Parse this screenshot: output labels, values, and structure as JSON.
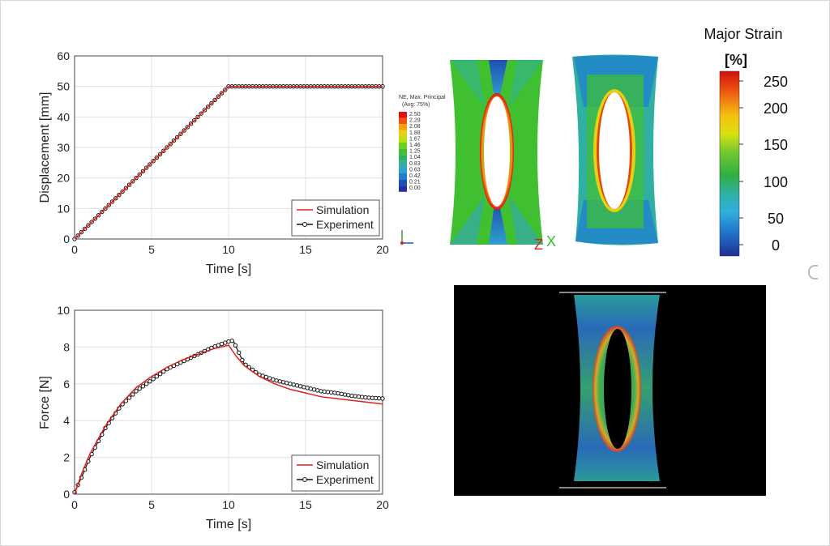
{
  "chart_data": [
    {
      "type": "line",
      "xlabel": "Time [s]",
      "ylabel": "Displacement [mm]",
      "xlim": [
        0,
        20
      ],
      "ylim": [
        0,
        60
      ],
      "xticks": [
        "0",
        "5",
        "10",
        "15",
        "20"
      ],
      "yticks": [
        "0",
        "10",
        "20",
        "30",
        "40",
        "50",
        "60"
      ],
      "grid": true,
      "legend": "bottom-right",
      "series": [
        {
          "name": "Simulation",
          "color": "#e02020",
          "marker": "none",
          "x": [
            0,
            10,
            20
          ],
          "y": [
            0,
            50,
            50
          ]
        },
        {
          "name": "Experiment",
          "color": "#111111",
          "marker": "circle",
          "x": [
            0,
            10,
            20
          ],
          "y": [
            0,
            50,
            50
          ]
        }
      ]
    },
    {
      "type": "line",
      "xlabel": "Time [s]",
      "ylabel": "Force [N]",
      "xlim": [
        0,
        20
      ],
      "ylim": [
        0,
        10
      ],
      "xticks": [
        "0",
        "5",
        "10",
        "15",
        "20"
      ],
      "yticks": [
        "0",
        "2",
        "4",
        "6",
        "8",
        "10"
      ],
      "grid": true,
      "legend": "bottom-right",
      "series": [
        {
          "name": "Simulation",
          "color": "#e02020",
          "marker": "none",
          "x": [
            0,
            0.5,
            1,
            2,
            3,
            4,
            5,
            6,
            7,
            8,
            9,
            10,
            10.5,
            11,
            12,
            13,
            14,
            15,
            16,
            17,
            18,
            19,
            20
          ],
          "y": [
            0,
            1.2,
            2.2,
            3.7,
            4.9,
            5.8,
            6.4,
            6.9,
            7.3,
            7.6,
            7.9,
            8.1,
            7.5,
            7.0,
            6.4,
            6.0,
            5.7,
            5.5,
            5.3,
            5.2,
            5.1,
            5.0,
            4.9
          ]
        },
        {
          "name": "Experiment",
          "color": "#111111",
          "marker": "circle",
          "x": [
            0,
            0.5,
            1,
            2,
            3,
            4,
            5,
            6,
            7,
            8,
            9,
            10,
            10.3,
            11,
            12,
            13,
            14,
            15,
            16,
            17,
            18,
            19,
            20
          ],
          "y": [
            0.1,
            1.0,
            2.0,
            3.6,
            4.8,
            5.6,
            6.2,
            6.8,
            7.2,
            7.6,
            8.0,
            8.3,
            8.35,
            7.1,
            6.5,
            6.2,
            6.0,
            5.8,
            5.6,
            5.5,
            5.35,
            5.25,
            5.2
          ]
        }
      ]
    }
  ],
  "fe_legend": {
    "title_line1": "NE, Max. Principal",
    "title_line2": "(Avg: 75%)",
    "values": [
      "2.50",
      "2.29",
      "2.08",
      "1.88",
      "1.67",
      "1.46",
      "1.25",
      "1.04",
      "0.83",
      "0.63",
      "0.42",
      "0.21",
      "0.00"
    ],
    "colors": [
      "#e01010",
      "#f05010",
      "#f5a010",
      "#e8d010",
      "#b8e010",
      "#70d020",
      "#40c030",
      "#30b060",
      "#30b0a0",
      "#30a0d0",
      "#2080d0",
      "#2050b0",
      "#2030a0"
    ]
  },
  "fe_axes": {
    "z": "Z",
    "x": "X"
  },
  "colorbar": {
    "title": "Major Strain",
    "unit": "[%]",
    "ticks": [
      "250",
      "200",
      "150",
      "100",
      "50",
      "0"
    ]
  }
}
